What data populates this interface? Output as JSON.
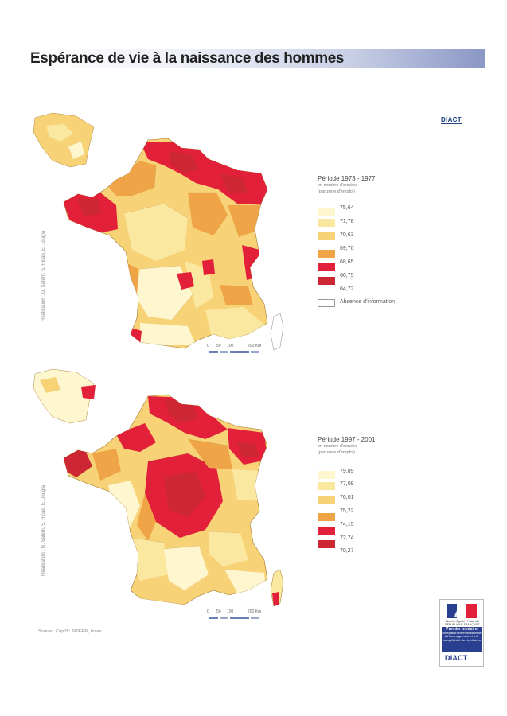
{
  "title": "Espérance de vie à la naissance des hommes",
  "brand": "DIACT",
  "maps": [
    {
      "period": "Période 1973 - 1977",
      "unit_line1": "en nombre d'années",
      "unit_line2": "(par zone d'emploi)",
      "classes": [
        "75,64",
        "71,78",
        "70,63",
        "69,70",
        "68,65",
        "66,75",
        "64,72"
      ],
      "no_info_label": "Absence d'information",
      "credit": "Réalisation : G. Salem, S. Rican, E. Jougla",
      "scale_ticks": [
        "0",
        "50",
        "100",
        "200 Km"
      ]
    },
    {
      "period": "Période 1997 - 2001",
      "unit_line1": "en nombre d'années",
      "unit_line2": "(par zone d'emploi)",
      "classes": [
        "79,89",
        "77,08",
        "76,01",
        "75,22",
        "74,15",
        "72,74",
        "70,27"
      ],
      "credit": "Réalisation : G. Salem, S. Rican, E. Jougla",
      "scale_ticks": [
        "0",
        "50",
        "100",
        "200 Km"
      ]
    }
  ],
  "class_colors": [
    "#fdf6cf",
    "#fbe8a0",
    "#f7d277",
    "#f0a448",
    "#e3203a",
    "#cc2732",
    "#ffffff"
  ],
  "source": "Source : CépiDc INSERM, Insee",
  "gov_logo": {
    "motto": "Liberté • Égalité • Fraternité  RÉPUBLIQUE FRANÇAISE",
    "office": "Premier ministre",
    "ministry": "Délégation interministérielle à l'aménagement et à la compétitivité des territoires",
    "brand": "DIACT"
  }
}
